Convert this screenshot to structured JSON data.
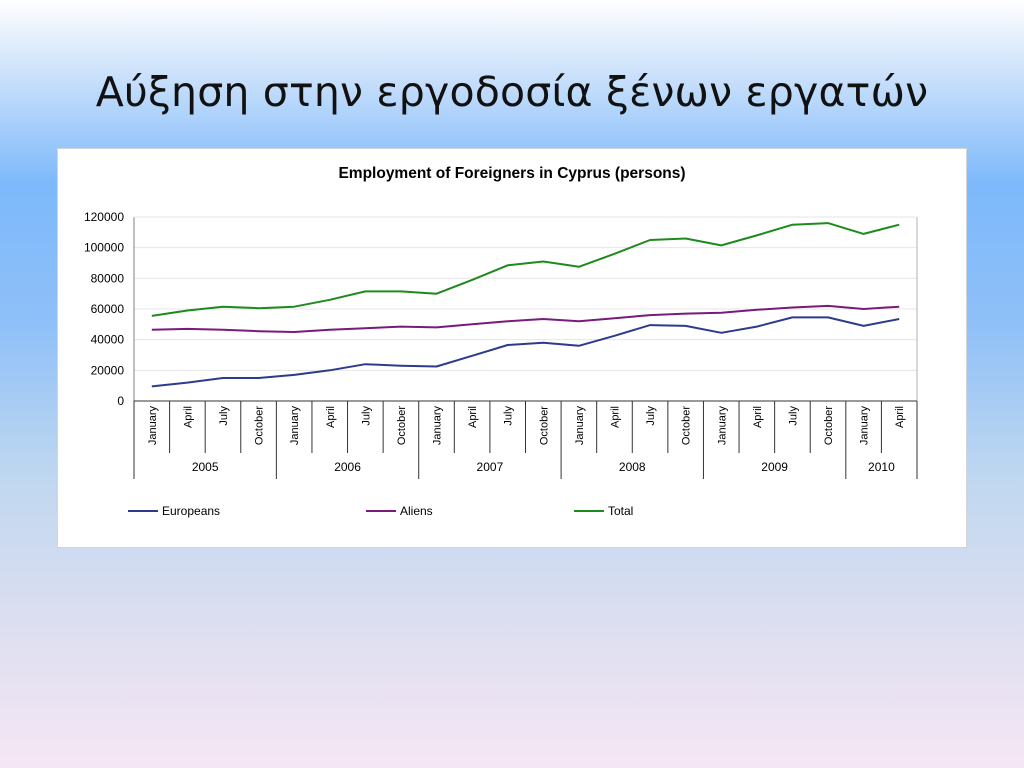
{
  "slide": {
    "title": "Αύξηση στην εργοδοσία ξένων εργατών"
  },
  "chart_data": {
    "type": "line",
    "title": "Employment of Foreigners in Cyprus (persons)",
    "xlabel": "",
    "ylabel": "",
    "ylim": [
      0,
      120000
    ],
    "yticks": [
      0,
      20000,
      40000,
      60000,
      80000,
      100000,
      120000
    ],
    "grid": true,
    "legend_position": "bottom",
    "x": [
      "January",
      "April",
      "July",
      "October",
      "January",
      "April",
      "July",
      "October",
      "January",
      "April",
      "July",
      "October",
      "January",
      "April",
      "July",
      "October",
      "January",
      "April",
      "July",
      "October",
      "January",
      "April"
    ],
    "years": [
      {
        "label": "2005",
        "count": 4
      },
      {
        "label": "2006",
        "count": 4
      },
      {
        "label": "2007",
        "count": 4
      },
      {
        "label": "2008",
        "count": 4
      },
      {
        "label": "2009",
        "count": 4
      },
      {
        "label": "2010",
        "count": 2
      }
    ],
    "series": [
      {
        "name": "Europeans",
        "color": "#2e3a8c",
        "values": [
          9500,
          12000,
          15000,
          15000,
          17000,
          20000,
          24000,
          23000,
          22500,
          29500,
          36500,
          38000,
          36000,
          42500,
          49500,
          49000,
          44500,
          48500,
          54500,
          54500,
          49000,
          53500
        ]
      },
      {
        "name": "Aliens",
        "color": "#7a1a7a",
        "values": [
          46500,
          47000,
          46500,
          45500,
          45000,
          46500,
          47500,
          48500,
          48000,
          50000,
          52000,
          53500,
          52000,
          54000,
          56000,
          57000,
          57500,
          59500,
          61000,
          62000,
          60000,
          61500
        ]
      },
      {
        "name": "Total",
        "color": "#1e8a1e",
        "values": [
          55500,
          59000,
          61500,
          60500,
          61500,
          66000,
          71500,
          71500,
          70000,
          79000,
          88500,
          91000,
          87500,
          96000,
          105000,
          106000,
          101500,
          108000,
          115000,
          116000,
          109000,
          115000
        ]
      }
    ]
  }
}
